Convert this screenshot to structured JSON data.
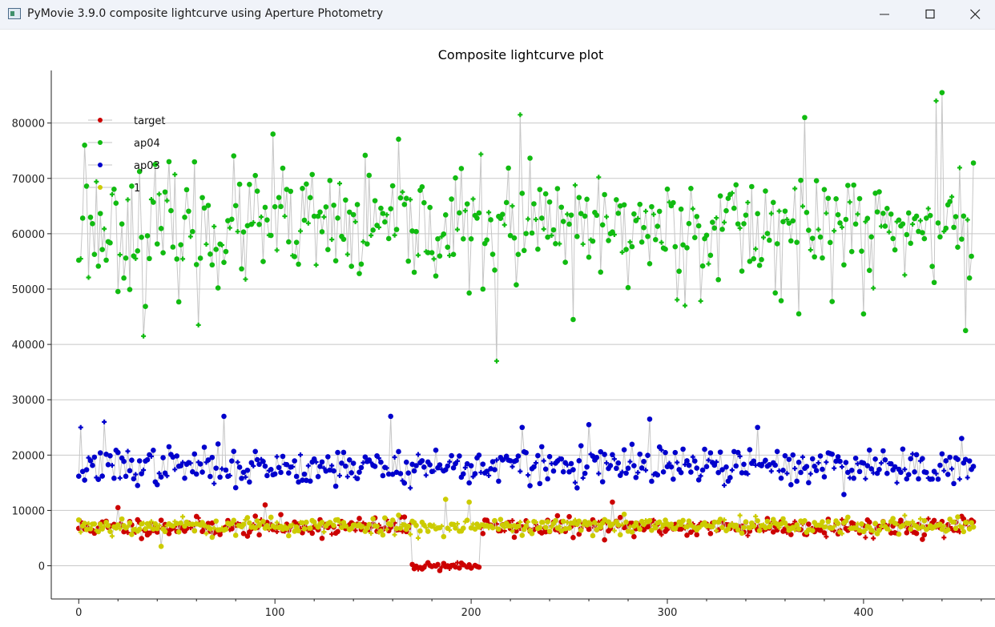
{
  "window": {
    "title": "PyMovie 3.9.0 composite lightcurve using Aperture Photometry",
    "icons": {
      "app": "pymovie-app-icon",
      "minimize": "minimize-icon",
      "maximize": "maximize-icon",
      "close": "close-icon"
    }
  },
  "chart_data": {
    "type": "scatter",
    "title": "Composite lightcurve plot",
    "xlabel": "",
    "ylabel": "",
    "xlim": [
      -14,
      467
    ],
    "ylim": [
      -6000,
      89500
    ],
    "xticks": [
      0,
      100,
      200,
      300,
      400
    ],
    "yticks": [
      0,
      10000,
      20000,
      30000,
      40000,
      50000,
      60000,
      70000,
      80000
    ],
    "grid": "horizontal",
    "legend_position": "top-left",
    "connect_points": true,
    "x": {
      "start": 0,
      "end": 456,
      "step": 1
    },
    "series": [
      {
        "name": "target",
        "color": "#cc0000",
        "baseline": 7000,
        "spread": 1500,
        "seed": 11,
        "dips": [
          {
            "from": 170,
            "to": 204,
            "level": 0,
            "spread": 700
          }
        ],
        "outliers": [
          [
            20,
            10500
          ],
          [
            95,
            11000
          ],
          [
            272,
            11500
          ]
        ]
      },
      {
        "name": "ap04",
        "color": "#11bb11",
        "baseline": 61000,
        "spread": 9500,
        "seed": 23,
        "outliers": [
          [
            3,
            76000
          ],
          [
            33,
            41500
          ],
          [
            61,
            43500
          ],
          [
            99,
            78000
          ],
          [
            213,
            37000
          ],
          [
            225,
            81500
          ],
          [
            252,
            44500
          ],
          [
            370,
            81000
          ],
          [
            400,
            45500
          ],
          [
            437,
            84000
          ],
          [
            440,
            85500
          ],
          [
            452,
            42500
          ]
        ]
      },
      {
        "name": "ap03",
        "color": "#0000cc",
        "baseline": 18000,
        "spread": 3000,
        "seed": 37,
        "outliers": [
          [
            1,
            25000
          ],
          [
            13,
            26000
          ],
          [
            74,
            27000
          ],
          [
            159,
            27000
          ],
          [
            226,
            25000
          ],
          [
            260,
            25500
          ],
          [
            291,
            26500
          ],
          [
            346,
            25000
          ],
          [
            450,
            23000
          ]
        ]
      },
      {
        "name": "1",
        "color": "#cccc00",
        "baseline": 7200,
        "spread": 1400,
        "seed": 53,
        "outliers": [
          [
            42,
            3500
          ],
          [
            187,
            12000
          ],
          [
            199,
            11500
          ]
        ]
      }
    ]
  }
}
